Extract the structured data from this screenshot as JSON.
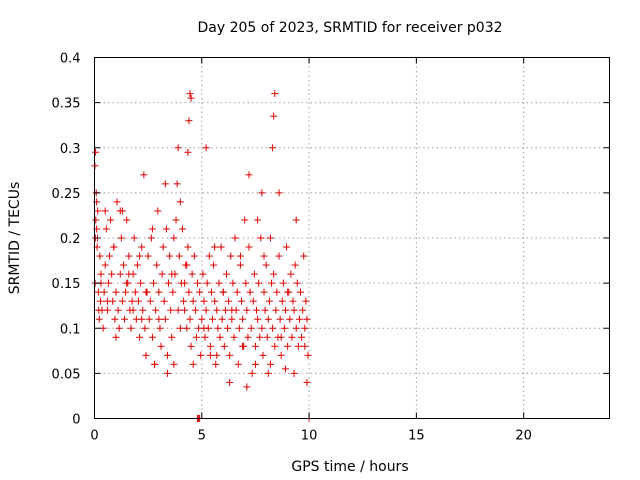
{
  "chart_data": {
    "type": "scatter",
    "title": "Day 205 of 2023, SRMTID for receiver p032",
    "xlabel": "GPS time / hours",
    "ylabel": "SRMTID / TECUs",
    "xlim": [
      0,
      24
    ],
    "ylim": [
      0,
      0.4
    ],
    "xticks": [
      0,
      5,
      10,
      15,
      20
    ],
    "xtick_labels": [
      "0",
      "5",
      "10",
      "15",
      "20"
    ],
    "yticks": [
      0,
      0.05,
      0.1,
      0.15,
      0.2,
      0.25,
      0.3,
      0.35,
      0.4
    ],
    "ytick_labels": [
      "0",
      "0.05",
      "0.1",
      "0.15",
      "0.2",
      "0.25",
      "0.3",
      "0.35",
      "0.4"
    ],
    "grid": true,
    "marker": "+",
    "color": "#e00000",
    "series": [
      {
        "name": "SRMTID",
        "x": [
          0.02,
          0.05,
          0.08,
          0.1,
          0.12,
          0.15,
          0.18,
          0.2,
          0.22,
          0.25,
          0.28,
          0.3,
          0.35,
          0.4,
          0.45,
          0.5,
          0.55,
          0.6,
          0.65,
          0.7,
          0.75,
          0.8,
          0.85,
          0.9,
          0.95,
          1.0,
          1.05,
          1.1,
          1.15,
          1.2,
          1.25,
          1.3,
          1.35,
          1.4,
          1.45,
          1.5,
          1.55,
          1.6,
          1.65,
          1.7,
          1.75,
          1.8,
          1.85,
          1.9,
          1.95,
          2.0,
          2.05,
          2.1,
          2.15,
          2.2,
          2.25,
          2.3,
          2.35,
          2.4,
          2.45,
          2.5,
          2.55,
          2.6,
          2.65,
          2.7,
          2.75,
          2.8,
          2.85,
          2.9,
          2.95,
          3.0,
          3.05,
          3.1,
          3.15,
          3.2,
          3.25,
          3.3,
          3.35,
          3.4,
          3.45,
          3.5,
          3.55,
          3.6,
          3.65,
          3.7,
          3.75,
          3.8,
          3.85,
          3.9,
          3.95,
          4.0,
          4.05,
          4.1,
          4.15,
          4.2,
          4.25,
          4.3,
          4.35,
          4.4,
          4.45,
          4.5,
          4.55,
          4.6,
          4.65,
          4.7,
          4.75,
          4.8,
          4.85,
          4.9,
          4.95,
          5.0,
          5.05,
          5.1,
          5.15,
          5.2,
          5.25,
          5.3,
          5.35,
          5.4,
          5.45,
          5.5,
          5.55,
          5.6,
          5.65,
          5.7,
          5.75,
          5.8,
          5.85,
          5.9,
          5.95,
          6.0,
          6.05,
          6.1,
          6.15,
          6.2,
          6.25,
          6.3,
          6.35,
          6.4,
          6.45,
          6.5,
          6.55,
          6.6,
          6.65,
          6.7,
          6.75,
          6.8,
          6.85,
          6.9,
          6.95,
          7.0,
          7.05,
          7.1,
          7.15,
          7.2,
          7.25,
          7.3,
          7.35,
          7.4,
          7.45,
          7.5,
          7.55,
          7.6,
          7.65,
          7.7,
          7.75,
          7.8,
          7.85,
          7.9,
          7.95,
          8.0,
          8.05,
          8.1,
          8.15,
          8.2,
          8.25,
          8.3,
          8.35,
          8.4,
          8.45,
          8.5,
          8.55,
          8.6,
          8.65,
          8.7,
          8.75,
          8.8,
          8.85,
          8.9,
          8.95,
          9.0,
          9.05,
          9.1,
          9.15,
          9.2,
          9.25,
          9.3,
          9.35,
          9.4,
          9.45,
          9.5,
          9.55,
          9.6,
          9.65,
          9.7,
          9.75,
          9.8,
          9.85,
          9.9,
          9.95,
          0.03,
          0.06,
          0.1,
          0.14,
          0.3,
          0.6,
          0.9,
          1.2,
          1.5,
          1.8,
          2.1,
          2.4,
          2.7,
          3.0,
          3.3,
          3.6,
          3.9,
          4.2,
          4.3,
          4.35,
          4.4,
          4.45,
          4.5,
          5.2,
          5.6,
          6.0,
          6.4,
          6.8,
          7.2,
          7.6,
          7.8,
          7.9,
          8.2,
          8.3,
          8.35,
          8.4,
          8.6,
          9.0,
          9.4,
          9.8,
          0.04,
          0.5,
          1.0,
          1.6,
          2.2,
          2.8,
          3.4,
          4.0,
          4.6,
          5.1,
          5.7,
          6.3,
          6.9,
          7.5,
          8.1,
          8.7,
          9.3,
          9.9,
          1.3,
          3.7,
          5.4,
          7.1,
          8.9,
          4.8,
          4.85,
          4.9,
          10.0
        ],
        "y": [
          0.28,
          0.295,
          0.25,
          0.21,
          0.19,
          0.23,
          0.14,
          0.12,
          0.11,
          0.18,
          0.13,
          0.15,
          0.12,
          0.1,
          0.14,
          0.17,
          0.21,
          0.12,
          0.15,
          0.18,
          0.22,
          0.16,
          0.13,
          0.19,
          0.11,
          0.14,
          0.24,
          0.12,
          0.1,
          0.16,
          0.2,
          0.13,
          0.17,
          0.11,
          0.14,
          0.22,
          0.15,
          0.18,
          0.12,
          0.1,
          0.13,
          0.16,
          0.2,
          0.14,
          0.11,
          0.17,
          0.13,
          0.09,
          0.15,
          0.19,
          0.12,
          0.27,
          0.1,
          0.07,
          0.14,
          0.18,
          0.11,
          0.13,
          0.2,
          0.09,
          0.15,
          0.06,
          0.12,
          0.17,
          0.23,
          0.14,
          0.1,
          0.08,
          0.16,
          0.19,
          0.13,
          0.11,
          0.21,
          0.07,
          0.15,
          0.18,
          0.12,
          0.09,
          0.14,
          0.2,
          0.16,
          0.22,
          0.26,
          0.3,
          0.18,
          0.24,
          0.15,
          0.21,
          0.13,
          0.12,
          0.17,
          0.1,
          0.19,
          0.14,
          0.11,
          0.08,
          0.16,
          0.13,
          0.18,
          0.12,
          0.09,
          0.15,
          0.1,
          0.14,
          0.07,
          0.11,
          0.16,
          0.13,
          0.09,
          0.12,
          0.15,
          0.1,
          0.18,
          0.08,
          0.14,
          0.11,
          0.17,
          0.13,
          0.06,
          0.12,
          0.1,
          0.15,
          0.09,
          0.19,
          0.11,
          0.14,
          0.08,
          0.12,
          0.16,
          0.1,
          0.13,
          0.07,
          0.18,
          0.11,
          0.15,
          0.09,
          0.2,
          0.12,
          0.14,
          0.06,
          0.1,
          0.17,
          0.13,
          0.11,
          0.08,
          0.22,
          0.15,
          0.12,
          0.09,
          0.19,
          0.14,
          0.1,
          0.05,
          0.13,
          0.16,
          0.08,
          0.12,
          0.11,
          0.15,
          0.09,
          0.2,
          0.1,
          0.07,
          0.14,
          0.12,
          0.17,
          0.09,
          0.11,
          0.13,
          0.06,
          0.15,
          0.1,
          0.16,
          0.08,
          0.12,
          0.14,
          0.09,
          0.18,
          0.11,
          0.07,
          0.13,
          0.15,
          0.1,
          0.12,
          0.19,
          0.08,
          0.14,
          0.11,
          0.16,
          0.09,
          0.13,
          0.12,
          0.17,
          0.1,
          0.15,
          0.08,
          0.11,
          0.14,
          0.09,
          0.12,
          0.18,
          0.1,
          0.13,
          0.11,
          0.07,
          0.15,
          0.22,
          0.24,
          0.2,
          0.16,
          0.13,
          0.19,
          0.23,
          0.15,
          0.12,
          0.18,
          0.14,
          0.21,
          0.11,
          0.26,
          0.16,
          0.12,
          0.15,
          0.17,
          0.295,
          0.33,
          0.36,
          0.355,
          0.3,
          0.19,
          0.14,
          0.12,
          0.18,
          0.27,
          0.22,
          0.25,
          0.18,
          0.2,
          0.3,
          0.335,
          0.36,
          0.25,
          0.14,
          0.22,
          0.08,
          0.2,
          0.23,
          0.09,
          0.16,
          0.11,
          0.06,
          0.05,
          0.1,
          0.06,
          0.1,
          0.07,
          0.04,
          0.08,
          0.06,
          0.05,
          0.09,
          0.05,
          0.04,
          0.23,
          0.06,
          0.07,
          0.035,
          0.055,
          0.0,
          0.0,
          0.0,
          0.0
        ]
      }
    ]
  }
}
